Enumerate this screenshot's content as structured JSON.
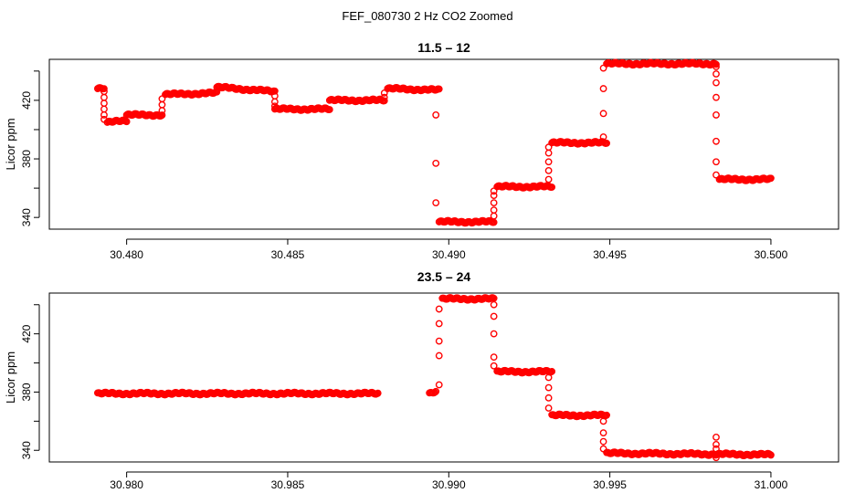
{
  "figure": {
    "suptitle": "FEF_080730  2 Hz CO2 Zoomed"
  },
  "chart_data": [
    {
      "type": "scatter",
      "title": "11.5 – 12",
      "xlabel": "",
      "ylabel": "Licor ppm",
      "xlim": [
        30.4776,
        30.5021
      ],
      "ylim": [
        332,
        448
      ],
      "x_ticks": [
        30.48,
        30.485,
        30.49,
        30.495,
        30.5
      ],
      "x_tick_labels": [
        "30.480",
        "30.485",
        "30.490",
        "30.495",
        "30.500"
      ],
      "y_ticks": [
        340,
        360,
        380,
        400,
        420,
        440
      ],
      "y_tick_labels": [
        "340",
        "",
        "380",
        "",
        "420",
        ""
      ],
      "marker": "open-circle",
      "color": "#ff0000",
      "segments": [
        {
          "x0": 30.4791,
          "x1": 30.4793,
          "y0": 428,
          "y1": 428
        },
        {
          "x0": 30.4794,
          "x1": 30.48,
          "y0": 405,
          "y1": 406
        },
        {
          "x0": 30.48,
          "x1": 30.4811,
          "y0": 410,
          "y1": 410
        },
        {
          "x0": 30.4812,
          "x1": 30.4828,
          "y0": 424,
          "y1": 425
        },
        {
          "x0": 30.4828,
          "x1": 30.4846,
          "y0": 429,
          "y1": 426
        },
        {
          "x0": 30.4846,
          "x1": 30.4863,
          "y0": 414,
          "y1": 414
        },
        {
          "x0": 30.4863,
          "x1": 30.488,
          "y0": 420,
          "y1": 420
        },
        {
          "x0": 30.4881,
          "x1": 30.4897,
          "y0": 428,
          "y1": 427
        },
        {
          "x0": 30.4897,
          "x1": 30.4914,
          "y0": 337,
          "y1": 337
        },
        {
          "x0": 30.4915,
          "x1": 30.4932,
          "y0": 361,
          "y1": 361
        },
        {
          "x0": 30.4932,
          "x1": 30.4949,
          "y0": 391,
          "y1": 391
        },
        {
          "x0": 30.4949,
          "x1": 30.4983,
          "y0": 445,
          "y1": 445
        },
        {
          "x0": 30.4984,
          "x1": 30.5,
          "y0": 366,
          "y1": 366
        }
      ],
      "transitions": [
        {
          "x": 30.4793,
          "y": [
            426,
            422,
            418,
            414,
            410,
            407
          ]
        },
        {
          "x": 30.4811,
          "y": [
            413,
            417,
            421
          ]
        },
        {
          "x": 30.4846,
          "y": [
            423,
            419,
            416
          ]
        },
        {
          "x": 30.488,
          "y": [
            422,
            425
          ]
        },
        {
          "x": 30.4896,
          "y": [
            410,
            377,
            350
          ]
        },
        {
          "x": 30.4914,
          "y": [
            341,
            345,
            350,
            355,
            358
          ]
        },
        {
          "x": 30.4931,
          "y": [
            366,
            372,
            378,
            384,
            388
          ]
        },
        {
          "x": 30.4948,
          "y": [
            395,
            411,
            428,
            442
          ]
        },
        {
          "x": 30.4983,
          "y": [
            443,
            438,
            432,
            422,
            410,
            392,
            378,
            369
          ]
        }
      ]
    },
    {
      "type": "scatter",
      "title": "23.5 – 24",
      "xlabel": "",
      "ylabel": "Licor ppm",
      "xlim": [
        30.9776,
        31.0021
      ],
      "ylim": [
        332,
        448
      ],
      "x_ticks": [
        30.98,
        30.985,
        30.99,
        30.995,
        31.0
      ],
      "x_tick_labels": [
        "30.980",
        "30.985",
        "30.990",
        "30.995",
        "31.000"
      ],
      "y_ticks": [
        340,
        360,
        380,
        400,
        420,
        440
      ],
      "y_tick_labels": [
        "340",
        "",
        "380",
        "",
        "420",
        ""
      ],
      "marker": "open-circle",
      "color": "#ff0000",
      "segments": [
        {
          "x0": 30.9791,
          "x1": 30.9878,
          "y0": 379,
          "y1": 379
        },
        {
          "x0": 30.9894,
          "x1": 30.9896,
          "y0": 379,
          "y1": 380
        },
        {
          "x0": 30.9898,
          "x1": 30.9914,
          "y0": 444,
          "y1": 444
        },
        {
          "x0": 30.9915,
          "x1": 30.9932,
          "y0": 394,
          "y1": 394
        },
        {
          "x0": 30.9932,
          "x1": 30.9949,
          "y0": 364,
          "y1": 364
        },
        {
          "x0": 30.9949,
          "x1": 31.0,
          "y0": 338,
          "y1": 337
        }
      ],
      "transitions": [
        {
          "x": 30.9897,
          "y": [
            385,
            405,
            415,
            427,
            437
          ]
        },
        {
          "x": 30.9914,
          "y": [
            440,
            432,
            420,
            404,
            398
          ]
        },
        {
          "x": 30.9931,
          "y": [
            390,
            383,
            376,
            369
          ]
        },
        {
          "x": 30.9948,
          "y": [
            360,
            352,
            346,
            341
          ]
        },
        {
          "x": 30.9983,
          "y": [
            349,
            344,
            341,
            335
          ]
        }
      ]
    }
  ]
}
